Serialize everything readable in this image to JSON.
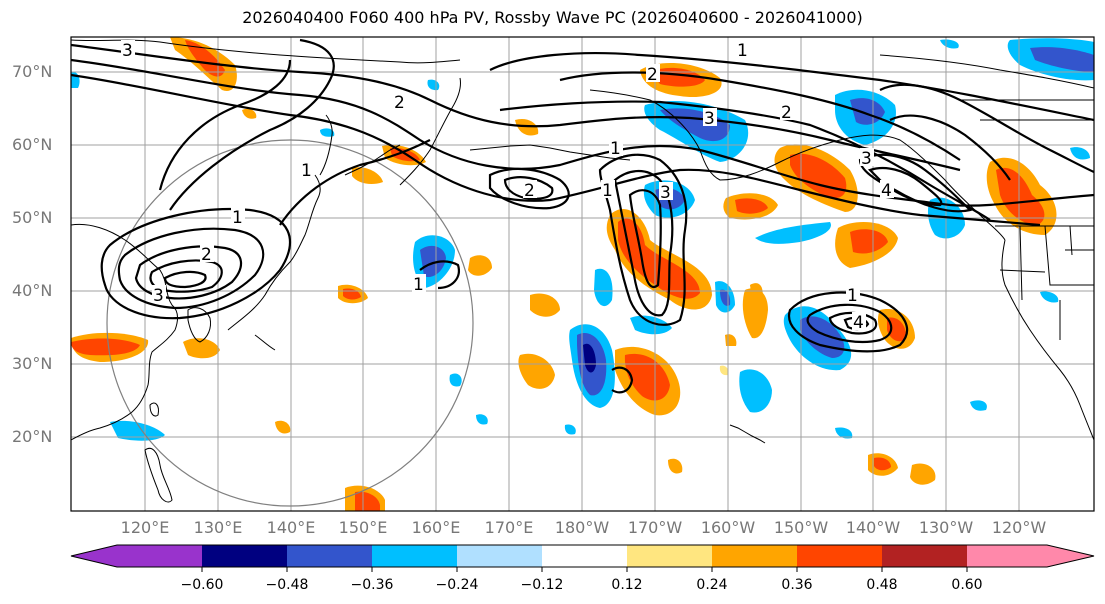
{
  "title": "2026040400 F060 400 hPa PV, Rossby Wave PC (2026040600 - 2026041000)",
  "lat_labels": [
    "70°N",
    "60°N",
    "50°N",
    "40°N",
    "30°N",
    "20°N"
  ],
  "lon_labels": [
    "120°E",
    "130°E",
    "140°E",
    "150°E",
    "160°E",
    "170°E",
    "180°W",
    "170°W",
    "160°W",
    "150°W",
    "140°W",
    "130°W",
    "120°W"
  ],
  "contour_labels": [
    "1",
    "2",
    "3",
    "4"
  ],
  "colorbar": {
    "ticks": [
      "−0.60",
      "−0.48",
      "−0.36",
      "−0.24",
      "−0.12",
      "0.12",
      "0.24",
      "0.36",
      "0.48",
      "0.60"
    ],
    "colors": [
      "#9933cc",
      "#000080",
      "#3355cc",
      "#00bfff",
      "#b0e0ff",
      "#ffffff",
      "#ffe680",
      "#ffa500",
      "#ff4500",
      "#b22222",
      "#ff88aa"
    ]
  },
  "colors": {
    "contour": "#000000",
    "grid": "#a0a0a0",
    "coast": "#000000",
    "label": "#777777"
  }
}
